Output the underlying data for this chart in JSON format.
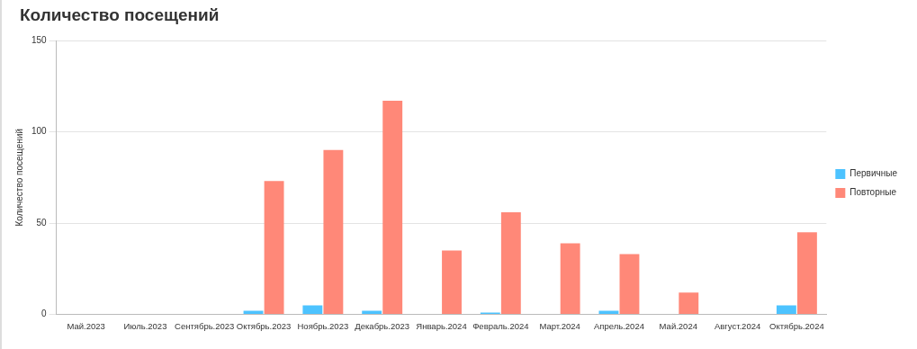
{
  "chart_data": {
    "type": "bar",
    "title": "Количество посещений",
    "ylabel": "Количество посещений",
    "categories": [
      "Май.2023",
      "Июль.2023",
      "Сентябрь.2023",
      "Октябрь.2023",
      "Ноябрь.2023",
      "Декабрь.2023",
      "Январь.2024",
      "Февраль.2024",
      "Март.2024",
      "Апрель.2024",
      "Май.2024",
      "Август.2024",
      "Октябрь.2024"
    ],
    "series": [
      {
        "name": "Первичные",
        "color": "#4dc3ff",
        "values": [
          0,
          0,
          0,
          2,
          5,
          2,
          0,
          1,
          0,
          2,
          0,
          0,
          5
        ]
      },
      {
        "name": "Повторные",
        "color": "#ff8878",
        "values": [
          0,
          0,
          0,
          73,
          90,
          117,
          35,
          56,
          39,
          33,
          12,
          0,
          45
        ]
      }
    ],
    "ylim": [
      0,
      150
    ],
    "yticks": [
      0,
      50,
      100,
      150
    ],
    "grid": "y",
    "legend": "right"
  }
}
